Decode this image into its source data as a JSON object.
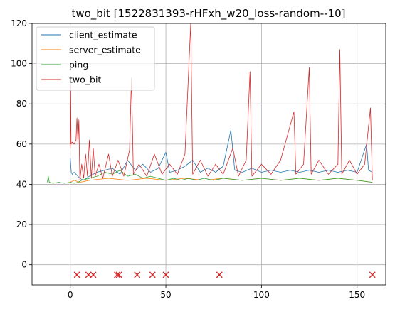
{
  "chart_data": {
    "type": "line",
    "title": "two_bit [1522831393-rHFxh_w20_loss-random--10]",
    "xlabel": "",
    "ylabel": "",
    "xlim": [
      -20,
      165
    ],
    "ylim": [
      -10,
      120
    ],
    "xticks": [
      0,
      50,
      100,
      150
    ],
    "yticks": [
      0,
      20,
      40,
      60,
      80,
      100,
      120
    ],
    "grid": true,
    "legend": "top-left",
    "series": [
      {
        "name": "client_estimate",
        "color": "#1f77b4",
        "points": [
          [
            0,
            53
          ],
          [
            0.5,
            46
          ],
          [
            1,
            45
          ],
          [
            2,
            46
          ],
          [
            3,
            45
          ],
          [
            4,
            44
          ],
          [
            5,
            43
          ],
          [
            7,
            42
          ],
          [
            10,
            44
          ],
          [
            14,
            46
          ],
          [
            18,
            47
          ],
          [
            22,
            48
          ],
          [
            26,
            45
          ],
          [
            30,
            52
          ],
          [
            34,
            47
          ],
          [
            38,
            50
          ],
          [
            42,
            46
          ],
          [
            46,
            48
          ],
          [
            50,
            56
          ],
          [
            52,
            46
          ],
          [
            56,
            47
          ],
          [
            60,
            49
          ],
          [
            64,
            52
          ],
          [
            68,
            46
          ],
          [
            72,
            48
          ],
          [
            76,
            46
          ],
          [
            80,
            49
          ],
          [
            84,
            67
          ],
          [
            86,
            47
          ],
          [
            90,
            46
          ],
          [
            95,
            48
          ],
          [
            100,
            46
          ],
          [
            105,
            47
          ],
          [
            110,
            46
          ],
          [
            115,
            47
          ],
          [
            120,
            46
          ],
          [
            125,
            47
          ],
          [
            130,
            46
          ],
          [
            135,
            47
          ],
          [
            140,
            46
          ],
          [
            145,
            47
          ],
          [
            150,
            46
          ],
          [
            155,
            60
          ],
          [
            156,
            47
          ],
          [
            158,
            46
          ]
        ]
      },
      {
        "name": "server_estimate",
        "color": "#ff7f0e",
        "points": [
          [
            0,
            41
          ],
          [
            2,
            42
          ],
          [
            5,
            41
          ],
          [
            10,
            42
          ],
          [
            20,
            43
          ],
          [
            30,
            42
          ],
          [
            40,
            43
          ],
          [
            50,
            42
          ],
          [
            60,
            43
          ],
          [
            70,
            42
          ],
          [
            80,
            43
          ],
          [
            90,
            42
          ],
          [
            100,
            43
          ],
          [
            110,
            42
          ],
          [
            120,
            43
          ],
          [
            130,
            42
          ],
          [
            140,
            43
          ],
          [
            150,
            42
          ],
          [
            158,
            41
          ]
        ]
      },
      {
        "name": "ping",
        "color": "#2ca02c",
        "points": [
          [
            -12,
            41
          ],
          [
            -11.5,
            44
          ],
          [
            -11,
            41
          ],
          [
            -9,
            40.5
          ],
          [
            -6,
            41
          ],
          [
            -3,
            40.5
          ],
          [
            0,
            41
          ],
          [
            2,
            40.5
          ],
          [
            4,
            41
          ],
          [
            6,
            42
          ],
          [
            10,
            43
          ],
          [
            14,
            44
          ],
          [
            18,
            46
          ],
          [
            22,
            45
          ],
          [
            26,
            47
          ],
          [
            30,
            44
          ],
          [
            34,
            45
          ],
          [
            38,
            43
          ],
          [
            42,
            44
          ],
          [
            46,
            43
          ],
          [
            50,
            42
          ],
          [
            54,
            43
          ],
          [
            58,
            42
          ],
          [
            62,
            43
          ],
          [
            66,
            42
          ],
          [
            70,
            43
          ],
          [
            75,
            42
          ],
          [
            80,
            43
          ],
          [
            90,
            42
          ],
          [
            100,
            43
          ],
          [
            110,
            42
          ],
          [
            120,
            43
          ],
          [
            130,
            42
          ],
          [
            140,
            43
          ],
          [
            150,
            42
          ],
          [
            158,
            41
          ]
        ]
      },
      {
        "name": "two_bit",
        "color": "#d62728",
        "points": [
          [
            0,
            58
          ],
          [
            0.2,
            90
          ],
          [
            0.4,
            60
          ],
          [
            1,
            61
          ],
          [
            2,
            60
          ],
          [
            3,
            62
          ],
          [
            3.5,
            73
          ],
          [
            4,
            61
          ],
          [
            4.5,
            72
          ],
          [
            5,
            42
          ],
          [
            6,
            50
          ],
          [
            7,
            43
          ],
          [
            8,
            55
          ],
          [
            9,
            44
          ],
          [
            10,
            62
          ],
          [
            11,
            43
          ],
          [
            12,
            58
          ],
          [
            13,
            44
          ],
          [
            15,
            50
          ],
          [
            17,
            43
          ],
          [
            20,
            55
          ],
          [
            22,
            44
          ],
          [
            25,
            52
          ],
          [
            28,
            44
          ],
          [
            31,
            57
          ],
          [
            32,
            93
          ],
          [
            33,
            45
          ],
          [
            36,
            50
          ],
          [
            40,
            44
          ],
          [
            44,
            55
          ],
          [
            48,
            45
          ],
          [
            52,
            50
          ],
          [
            56,
            45
          ],
          [
            60,
            55
          ],
          [
            63,
            120
          ],
          [
            64,
            45
          ],
          [
            68,
            52
          ],
          [
            72,
            44
          ],
          [
            76,
            50
          ],
          [
            80,
            45
          ],
          [
            85,
            58
          ],
          [
            88,
            44
          ],
          [
            92,
            52
          ],
          [
            94,
            96
          ],
          [
            95,
            44
          ],
          [
            100,
            50
          ],
          [
            105,
            45
          ],
          [
            110,
            52
          ],
          [
            117,
            76
          ],
          [
            118,
            45
          ],
          [
            122,
            50
          ],
          [
            125,
            98
          ],
          [
            126,
            45
          ],
          [
            130,
            52
          ],
          [
            135,
            45
          ],
          [
            140,
            50
          ],
          [
            141,
            107
          ],
          [
            142,
            45
          ],
          [
            146,
            52
          ],
          [
            150,
            45
          ],
          [
            154,
            50
          ],
          [
            157,
            78
          ],
          [
            158,
            42
          ]
        ]
      }
    ],
    "markers": {
      "symbol": "x",
      "color": "#d62728",
      "y": -5,
      "x": [
        3.5,
        9.5,
        12,
        24.5,
        25.5,
        35,
        43,
        50,
        78,
        158
      ]
    }
  }
}
